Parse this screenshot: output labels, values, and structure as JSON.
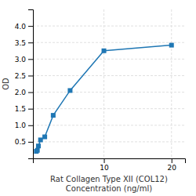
{
  "chart_data": {
    "type": "line",
    "x": [
      0,
      0.156,
      0.313,
      0.625,
      1.25,
      2.5,
      5,
      10,
      20
    ],
    "values": [
      0.212,
      0.243,
      0.374,
      0.558,
      0.65,
      1.3,
      2.05,
      3.25,
      3.42
    ],
    "xlabel": "Rat Collagen Type XII (COL12)\nConcentration (ng/ml)",
    "ylabel": "OD",
    "xlim": [
      -0.5,
      22
    ],
    "ylim": [
      0,
      4.5
    ],
    "xticks": [
      10,
      20
    ],
    "yticks": [
      0.5,
      {
        "value": 1.0,
        "label": "1.0"
      },
      1.5,
      {
        "value": 2.0,
        "label": "2.0"
      },
      2.5,
      {
        "value": 3.0,
        "label": "3.0"
      },
      3.5,
      {
        "value": 4.0,
        "label": "4.0"
      }
    ],
    "grid": true,
    "marker": "square"
  }
}
